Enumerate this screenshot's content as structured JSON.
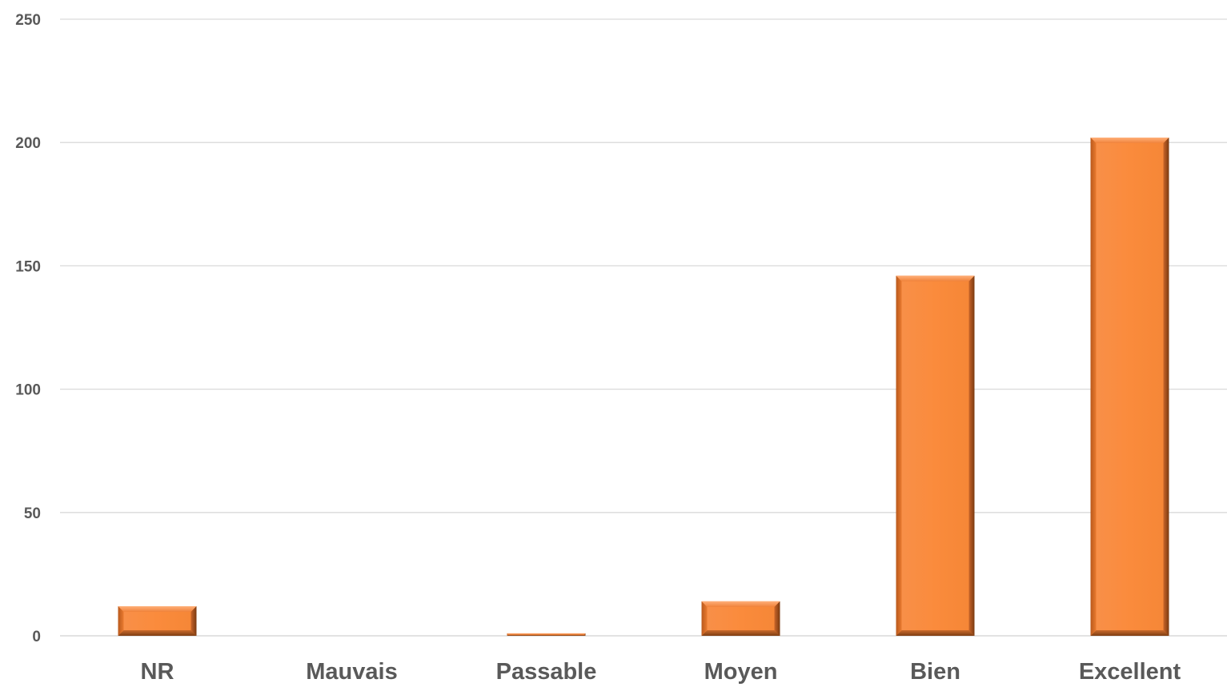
{
  "chart_data": {
    "type": "bar",
    "categories": [
      "NR",
      "Mauvais",
      "Passable",
      "Moyen",
      "Bien",
      "Excellent"
    ],
    "values": [
      12,
      0,
      1,
      14,
      146,
      202
    ],
    "title": "",
    "xlabel": "",
    "ylabel": "",
    "ylim": [
      0,
      250
    ],
    "yticks": [
      0,
      50,
      100,
      150,
      200,
      250
    ],
    "grid": true,
    "legend": "none",
    "bar_color": "#F4883A",
    "bar_shade_color": "#A04E16",
    "grid_color": "#D9D9D9",
    "label_color": "#595959"
  }
}
